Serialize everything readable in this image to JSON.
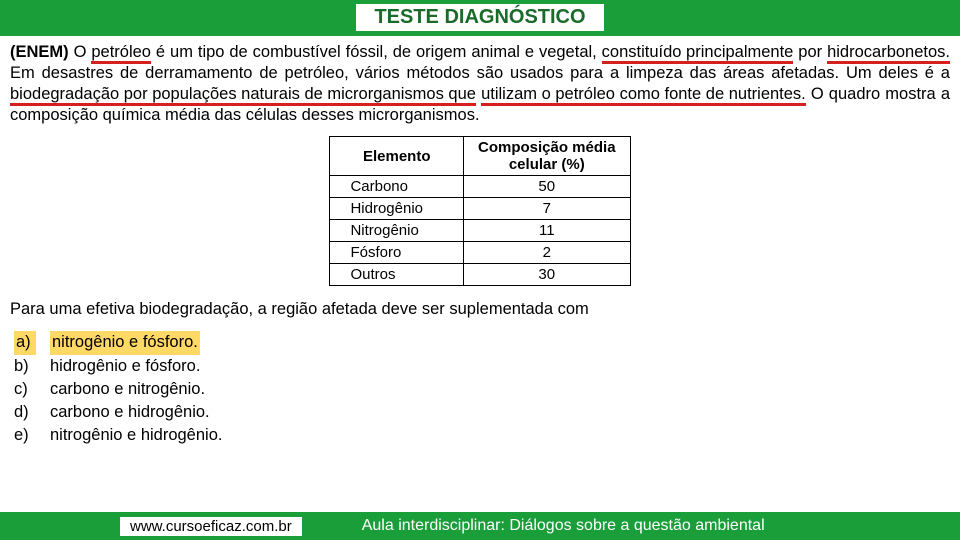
{
  "header": {
    "title": "TESTE DIAGNÓSTICO"
  },
  "colors": {
    "header_bg": "#1a9e3a",
    "underline": "#d62020",
    "highlight": "#ffd966",
    "text": "#000000",
    "title_text": "#1a6b2a"
  },
  "typography": {
    "title_fontsize": 20,
    "body_fontsize": 16.5,
    "table_fontsize": 15,
    "footer_fontsize": 15
  },
  "question": {
    "source": "(ENEM)",
    "seg1a": " O ",
    "seg1_ul1": "petróleo",
    "seg1b": " é um tipo de combustível fóssil, de origem animal e vegetal, ",
    "seg1_ul2": "constituído principalmente",
    "seg2a": "por ",
    "seg2_ul1": "hidrocarbonetos.",
    "seg2b": " Em desastres de derramamento de petróleo, vários métodos são usados para a limpeza das áreas afetadas. Um deles é a ",
    "seg2_ul2": "biodegradação por populações naturais de microrganismos que",
    "seg3_ul1": "utilizam o petróleo como fonte de nutrientes.",
    "seg3b": " O quadro mostra a composição química média das células desses microrganismos."
  },
  "table": {
    "type": "table",
    "columns": [
      "Elemento",
      "Composição média celular (%)"
    ],
    "col_header_a": "Elemento",
    "col_header_b1": "Composição média",
    "col_header_b2": "celular (%)",
    "rows": [
      {
        "elem": "Carbono",
        "val": "50"
      },
      {
        "elem": "Hidrogênio",
        "val": "7"
      },
      {
        "elem": "Nitrogênio",
        "val": "11"
      },
      {
        "elem": "Fósforo",
        "val": "2"
      },
      {
        "elem": "Outros",
        "val": "30"
      }
    ]
  },
  "prompt": "Para uma efetiva biodegradação, a região afetada deve ser suplementada com",
  "options": [
    {
      "letter": "a)",
      "text": "nitrogênio e fósforo.",
      "highlighted": true
    },
    {
      "letter": "b)",
      "text": "hidrogênio e fósforo.",
      "highlighted": false
    },
    {
      "letter": "c)",
      "text": "carbono e nitrogênio.",
      "highlighted": false
    },
    {
      "letter": "d)",
      "text": "carbono e hidrogênio.",
      "highlighted": false
    },
    {
      "letter": "e)",
      "text": "nitrogênio e hidrogênio.",
      "highlighted": false
    }
  ],
  "footer": {
    "left": "www.cursoeficaz.com.br",
    "right": "Aula interdisciplinar: Diálogos sobre a questão ambiental"
  }
}
